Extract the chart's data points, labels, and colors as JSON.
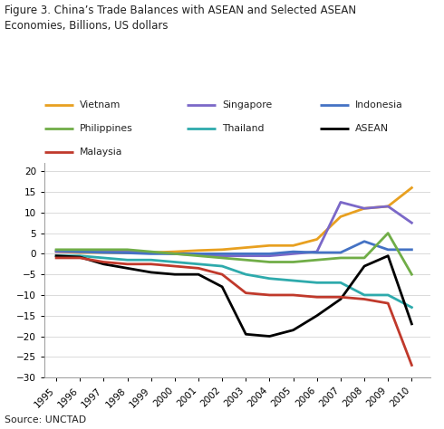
{
  "title": "Figure 3. China’s Trade Balances with ASEAN and Selected ASEAN\nEconomies, Billions, US dollars",
  "source": "Source: UNCTAD",
  "years": [
    1995,
    1996,
    1997,
    1998,
    1999,
    2000,
    2001,
    2002,
    2003,
    2004,
    2005,
    2006,
    2007,
    2008,
    2009,
    2010
  ],
  "series": {
    "Vietnam": [
      0.5,
      0.3,
      0.3,
      0.2,
      0.3,
      0.5,
      0.8,
      1.0,
      1.5,
      2.0,
      2.0,
      3.5,
      9.0,
      11.0,
      11.5,
      16.0
    ],
    "Singapore": [
      0.5,
      0.5,
      0.8,
      0.5,
      0.3,
      0.0,
      -0.3,
      -0.5,
      -0.5,
      -0.5,
      0.0,
      0.5,
      12.5,
      11.0,
      11.5,
      7.5
    ],
    "Indonesia": [
      0.8,
      0.5,
      0.3,
      0.2,
      0.0,
      0.0,
      0.0,
      0.0,
      0.0,
      0.0,
      0.5,
      0.3,
      0.3,
      3.0,
      1.0,
      1.0
    ],
    "Philippines": [
      1.0,
      1.0,
      1.0,
      1.0,
      0.5,
      0.0,
      -0.5,
      -1.0,
      -1.5,
      -2.0,
      -2.0,
      -1.5,
      -1.0,
      -1.0,
      5.0,
      -5.0
    ],
    "Thailand": [
      -0.5,
      -0.5,
      -1.0,
      -1.5,
      -1.5,
      -2.0,
      -2.5,
      -3.0,
      -5.0,
      -6.0,
      -6.5,
      -7.0,
      -7.0,
      -10.0,
      -10.0,
      -13.0
    ],
    "ASEAN": [
      -0.5,
      -0.8,
      -2.5,
      -3.5,
      -4.5,
      -5.0,
      -5.0,
      -8.0,
      -19.5,
      -20.0,
      -18.5,
      -15.0,
      -11.0,
      -3.0,
      -0.5,
      -17.0
    ],
    "Malaysia": [
      -1.0,
      -1.0,
      -2.0,
      -2.5,
      -2.5,
      -3.0,
      -3.5,
      -5.0,
      -9.5,
      -10.0,
      -10.0,
      -10.5,
      -10.5,
      -11.0,
      -12.0,
      -27.0
    ]
  },
  "colors": {
    "Vietnam": "#E8A020",
    "Singapore": "#7B68C8",
    "Indonesia": "#4472C4",
    "Philippines": "#70AD47",
    "Thailand": "#2EAAAC",
    "ASEAN": "#000000",
    "Malaysia": "#C0392B"
  },
  "ylim": [
    -30,
    22
  ],
  "yticks": [
    -30,
    -25,
    -20,
    -15,
    -10,
    -5,
    0,
    5,
    10,
    15,
    20
  ],
  "legend_rows": [
    [
      "Vietnam",
      "Singapore",
      "Indonesia"
    ],
    [
      "Philippines",
      "Thailand",
      "ASEAN"
    ],
    [
      "Malaysia"
    ]
  ]
}
